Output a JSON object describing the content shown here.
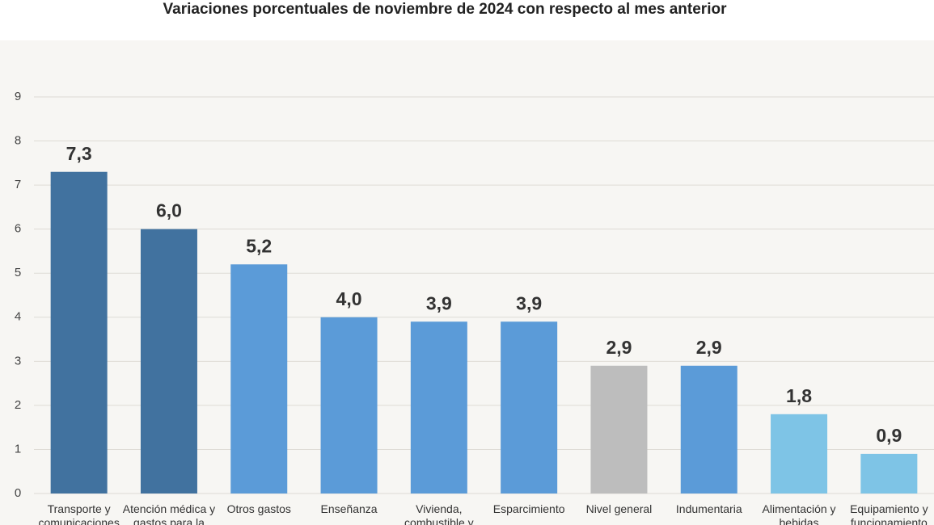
{
  "chart_data": {
    "type": "bar",
    "title": "Variaciones porcentuales de noviembre de 2024 con respecto al mes anterior",
    "categories": [
      "Transporte y comunicaciones",
      "Atención médica y gastos para la",
      "Otros gastos",
      "Enseñanza",
      "Vivienda, combustible y",
      "Esparcimiento",
      "Nivel general",
      "Indumentaria",
      "Alimentación y bebidas",
      "Equipamiento y funcionamiento"
    ],
    "values": [
      7.3,
      6.0,
      5.2,
      4.0,
      3.9,
      3.9,
      2.9,
      2.9,
      1.8,
      0.9
    ],
    "value_labels": [
      "7,3",
      "6,0",
      "5,2",
      "4,0",
      "3,9",
      "3,9",
      "2,9",
      "2,9",
      "1,8",
      "0,9"
    ],
    "colors": [
      "#41729f",
      "#41729f",
      "#5b9bd8",
      "#5b9bd8",
      "#5b9bd8",
      "#5b9bd8",
      "#bdbdbd",
      "#5b9bd8",
      "#7ec4e6",
      "#7ec4e6"
    ],
    "ylim": [
      0,
      9
    ],
    "yticks": [
      0,
      1,
      2,
      3,
      4,
      5,
      6,
      7,
      8,
      9
    ],
    "grid": true
  }
}
